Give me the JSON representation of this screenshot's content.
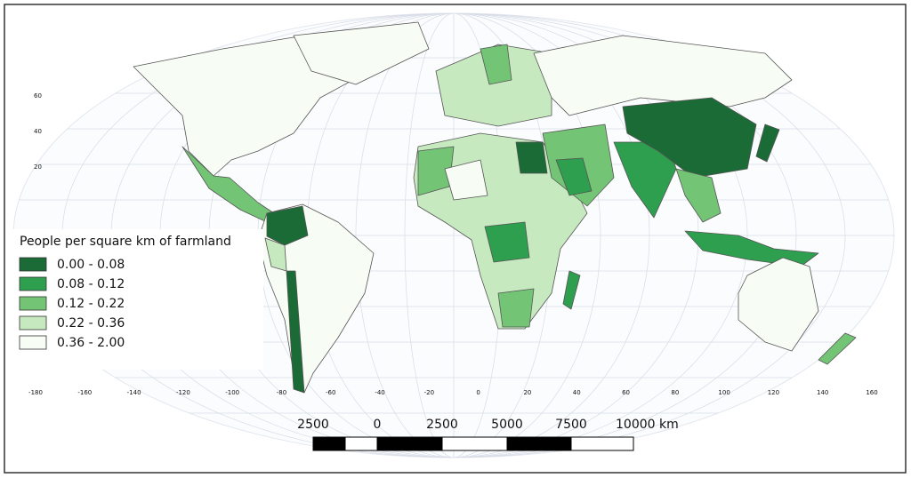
{
  "legend": {
    "title": "People per square km of farmland",
    "items": [
      {
        "label": "0.00 - 0.08",
        "color": "#1a6b35"
      },
      {
        "label": "0.08 - 0.12",
        "color": "#2e9e4f"
      },
      {
        "label": "0.12 - 0.22",
        "color": "#74c476"
      },
      {
        "label": "0.22 - 0.36",
        "color": "#c7e9c0"
      },
      {
        "label": "0.36 - 2.00",
        "color": "#f7fcf5"
      }
    ]
  },
  "scale_bar": {
    "labels": [
      "2500",
      "0",
      "2500",
      "5000",
      "7500",
      "10000 km"
    ]
  },
  "graticule": {
    "lat_labels": [
      "60",
      "40",
      "20"
    ],
    "lon_labels": [
      "-180",
      "-160",
      "-140",
      "-120",
      "-100",
      "-80",
      "-60",
      "-40",
      "-20",
      "0",
      "20",
      "40",
      "60",
      "80",
      "100",
      "120",
      "140",
      "160"
    ]
  }
}
